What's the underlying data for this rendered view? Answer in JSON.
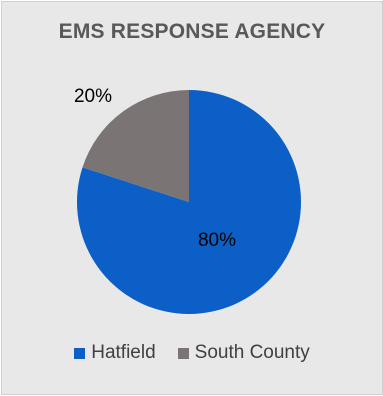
{
  "chart_data": {
    "type": "pie",
    "title": "EMS RESPONSE AGENCY",
    "categories": [
      "Hatfield",
      "South County"
    ],
    "values": [
      80,
      20
    ],
    "labels": [
      "80%",
      "20%"
    ],
    "colors": [
      "#0b5fc6",
      "#7a7574"
    ],
    "legend_position": "bottom"
  }
}
